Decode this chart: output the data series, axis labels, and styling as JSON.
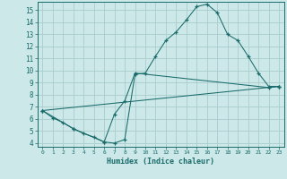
{
  "xlabel": "Humidex (Indice chaleur)",
  "bg_color": "#cce8e8",
  "grid_color": "#aacccc",
  "line_color": "#1a6b6b",
  "xlim": [
    -0.5,
    23.5
  ],
  "ylim": [
    3.7,
    15.7
  ],
  "xticks": [
    0,
    1,
    2,
    3,
    4,
    5,
    6,
    7,
    8,
    9,
    10,
    11,
    12,
    13,
    14,
    15,
    16,
    17,
    18,
    19,
    20,
    21,
    22,
    23
  ],
  "yticks": [
    4,
    5,
    6,
    7,
    8,
    9,
    10,
    11,
    12,
    13,
    14,
    15
  ],
  "line1_x": [
    0,
    1,
    2,
    3,
    4,
    5,
    6,
    7,
    8,
    9,
    10,
    11,
    12,
    13,
    14,
    15,
    16,
    17,
    18,
    19,
    20,
    21,
    22,
    23
  ],
  "line1_y": [
    6.7,
    6.1,
    5.7,
    5.2,
    4.8,
    4.5,
    4.1,
    4.0,
    4.3,
    9.7,
    9.8,
    11.2,
    12.5,
    13.2,
    14.2,
    15.3,
    15.5,
    14.8,
    13.0,
    12.5,
    11.2,
    9.8,
    8.7,
    8.7
  ],
  "line2_x": [
    0,
    3,
    6,
    7,
    8,
    9,
    22,
    23
  ],
  "line2_y": [
    6.7,
    5.2,
    4.1,
    6.4,
    7.5,
    9.8,
    8.6,
    8.7
  ],
  "line3_x": [
    0,
    23
  ],
  "line3_y": [
    6.7,
    8.7
  ]
}
